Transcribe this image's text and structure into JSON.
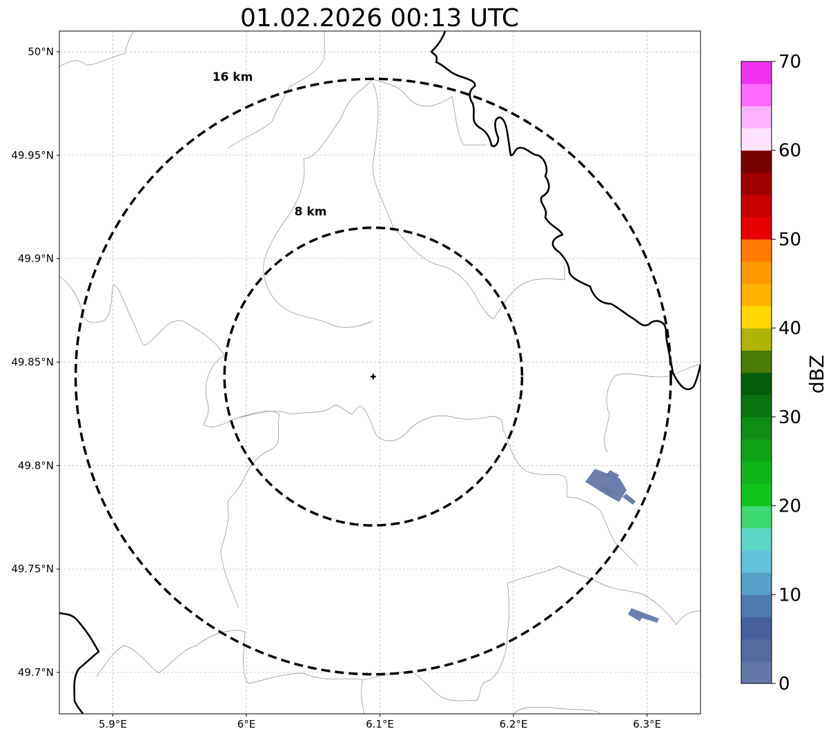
{
  "title": "01.02.2026 00:13 UTC",
  "map": {
    "x_ticks": [
      {
        "lon": 5.9,
        "label": "5.9°E"
      },
      {
        "lon": 6.0,
        "label": "6°E"
      },
      {
        "lon": 6.1,
        "label": "6.1°E"
      },
      {
        "lon": 6.2,
        "label": "6.2°E"
      },
      {
        "lon": 6.3,
        "label": "6.3°E"
      }
    ],
    "y_ticks": [
      {
        "lat": 50.0,
        "label": "50°N"
      },
      {
        "lat": 49.95,
        "label": "49.95°N"
      },
      {
        "lat": 49.9,
        "label": "49.9°N"
      },
      {
        "lat": 49.85,
        "label": "49.85°N"
      },
      {
        "lat": 49.8,
        "label": "49.8°N"
      },
      {
        "lat": 49.75,
        "label": "49.75°N"
      },
      {
        "lat": 49.7,
        "label": "49.7°N"
      }
    ],
    "extent": {
      "lon_min": 5.86,
      "lon_max": 6.34,
      "lat_min": 49.68,
      "lat_max": 50.01
    },
    "radar_site": {
      "lon": 6.095,
      "lat": 49.843
    },
    "range_rings": [
      {
        "label": "8 km",
        "radius_km": 8
      },
      {
        "label": "16 km",
        "radius_km": 16
      }
    ],
    "echo_color": "#6477a8"
  },
  "colorbar": {
    "label": "dBZ",
    "ticks": [
      "0",
      "10",
      "20",
      "30",
      "40",
      "50",
      "60",
      "70"
    ],
    "colors": [
      "#6477a8",
      "#5669a0",
      "#475f9f",
      "#4e7ab0",
      "#57a0c8",
      "#64c2dc",
      "#5dd6c6",
      "#3dd870",
      "#10c51c",
      "#10b51a",
      "#0fa214",
      "#0e8c14",
      "#0a7410",
      "#065e0a",
      "#4a7a08",
      "#aeb405",
      "#ffd700",
      "#ffb300",
      "#ff9900",
      "#ff7a00",
      "#e60000",
      "#c80000",
      "#a00000",
      "#7a0000",
      "#ffe2ff",
      "#ffb3ff",
      "#ff6aff",
      "#f033f0"
    ]
  }
}
